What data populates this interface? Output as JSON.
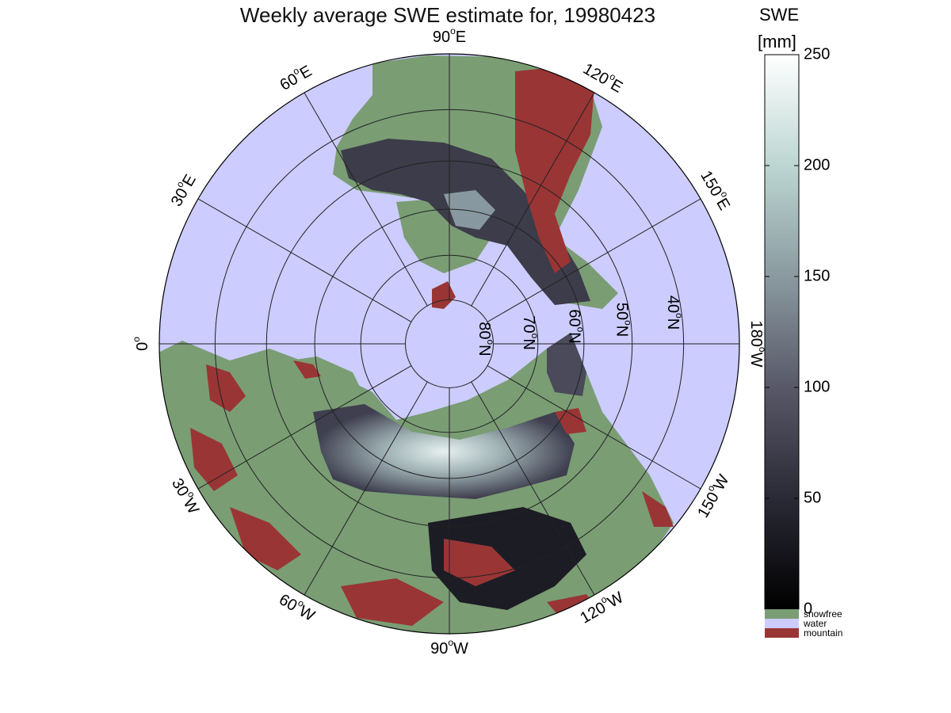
{
  "title": "Weekly average SWE estimate for, 19980423",
  "map": {
    "projection": "north polar stereographic",
    "meridian_labels": [
      {
        "label": "0",
        "sup": "o",
        "suffix": "",
        "lon": 0
      },
      {
        "label": "30",
        "sup": "o",
        "suffix": "E",
        "lon": 30
      },
      {
        "label": "60",
        "sup": "o",
        "suffix": "E",
        "lon": 60
      },
      {
        "label": "90",
        "sup": "o",
        "suffix": "E",
        "lon": 90
      },
      {
        "label": "120",
        "sup": "o",
        "suffix": "E",
        "lon": 120
      },
      {
        "label": "150",
        "sup": "o",
        "suffix": "E",
        "lon": 150
      },
      {
        "label": "180",
        "sup": "o",
        "suffix": "W",
        "lon": 180
      },
      {
        "label": "150",
        "sup": "o",
        "suffix": "W",
        "lon": -150
      },
      {
        "label": "120",
        "sup": "o",
        "suffix": "W",
        "lon": -120
      },
      {
        "label": "90",
        "sup": "o",
        "suffix": "W",
        "lon": -90
      },
      {
        "label": "60",
        "sup": "o",
        "suffix": "W",
        "lon": -60
      },
      {
        "label": "30",
        "sup": "o",
        "suffix": "W",
        "lon": -30
      }
    ],
    "parallel_labels": [
      {
        "label": "80",
        "sup": "o",
        "suffix": "N",
        "lat": 80
      },
      {
        "label": "70",
        "sup": "o",
        "suffix": "N",
        "lat": 70
      },
      {
        "label": "60",
        "sup": "o",
        "suffix": "N",
        "lat": 60
      },
      {
        "label": "50",
        "sup": "o",
        "suffix": "N",
        "lat": 50
      },
      {
        "label": "40",
        "sup": "o",
        "suffix": "N",
        "lat": 40
      }
    ],
    "colors": {
      "water": "#ccccff",
      "snowfree": "#7a9d74",
      "mountain": "#9a3535",
      "grid": "#222222"
    }
  },
  "colorbar": {
    "label_line1": "SWE",
    "label_line2": "[mm]",
    "range": [
      0,
      250
    ],
    "ticks": [
      {
        "value": 0,
        "label": "0"
      },
      {
        "value": 50,
        "label": "50"
      },
      {
        "value": 100,
        "label": "100"
      },
      {
        "value": 150,
        "label": "150"
      },
      {
        "value": 200,
        "label": "200"
      },
      {
        "value": 250,
        "label": "250"
      }
    ],
    "colors": [
      "#000000",
      "#2a2a36",
      "#585868",
      "#8a9aa0",
      "#bcd6d2",
      "#ffffff"
    ]
  },
  "legend": [
    {
      "label": "snowfree",
      "color": "#7a9d74"
    },
    {
      "label": "water",
      "color": "#ccccff"
    },
    {
      "label": "mountain",
      "color": "#9a3535"
    }
  ]
}
